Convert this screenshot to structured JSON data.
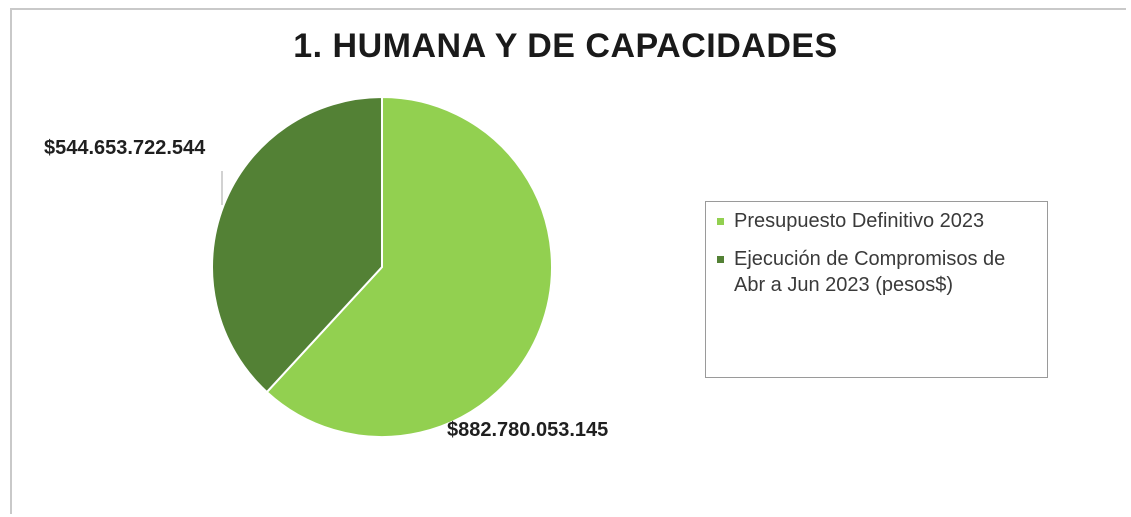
{
  "chart_data": {
    "type": "pie",
    "title": "1. HUMANA Y DE CAPACIDADES",
    "legend_position": "right",
    "series": [
      {
        "name": "Presupuesto Definitivo 2023",
        "value": 882780053145,
        "label": "$882.780.053.145",
        "color": "#92d050"
      },
      {
        "name": "Ejecución de Compromisos de Abr a Jun 2023 (pesos$)",
        "value": 544653722544,
        "label": "$544.653.722.544",
        "color": "#538135"
      }
    ]
  }
}
